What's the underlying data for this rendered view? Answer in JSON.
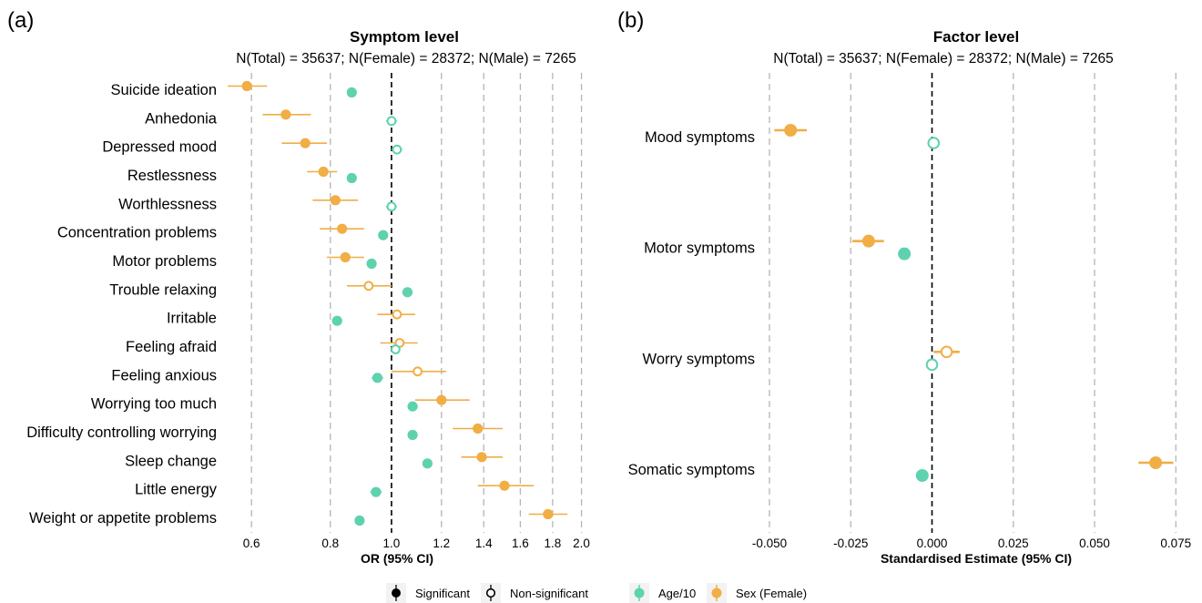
{
  "colors": {
    "age": "#5ED2AE",
    "sex": "#F0AE45",
    "grid": "#B5B5B5",
    "ref": "#000000"
  },
  "legend": {
    "significance": [
      {
        "label": "Significant",
        "filled": true
      },
      {
        "label": "Non-significant",
        "filled": false
      }
    ],
    "predictors": [
      {
        "label": "Age/10",
        "key": "age"
      },
      {
        "label": "Sex (Female)",
        "key": "sex"
      }
    ]
  },
  "chart_data": [
    {
      "panel": "(a)",
      "type": "scatter",
      "subtype": "forest",
      "title": "Symptom level",
      "subtitle": "N(Total) = 35637; N(Female) = 28372; N(Male) = 7265",
      "xlabel": "OR (95% CI)",
      "xscale": "log",
      "reference": 1.0,
      "xlim": [
        0.55,
        2.05
      ],
      "xticks": [
        0.6,
        0.8,
        1.0,
        1.2,
        1.4,
        1.6,
        1.8,
        2.0
      ],
      "xtick_labels": [
        "0.6",
        "0.8",
        "1.0",
        "1.2",
        "1.4",
        "1.6",
        "1.8",
        "2.0"
      ],
      "categories": [
        "Suicide ideation",
        "Anhedonia",
        "Depressed mood",
        "Restlessness",
        "Worthlessness",
        "Concentration problems",
        "Motor problems",
        "Trouble relaxing",
        "Irritable",
        "Feeling afraid",
        "Feeling anxious",
        "Worrying too much",
        "Difficulty controlling worrying",
        "Sleep change",
        "Little energy",
        "Weight or appetite problems"
      ],
      "series": [
        {
          "name": "Sex (Female)",
          "key": "sex",
          "points": [
            {
              "est": 0.59,
              "lo": 0.55,
              "hi": 0.635,
              "sig": true
            },
            {
              "est": 0.68,
              "lo": 0.625,
              "hi": 0.745,
              "sig": true
            },
            {
              "est": 0.73,
              "lo": 0.67,
              "hi": 0.79,
              "sig": true
            },
            {
              "est": 0.78,
              "lo": 0.735,
              "hi": 0.82,
              "sig": true
            },
            {
              "est": 0.815,
              "lo": 0.75,
              "hi": 0.885,
              "sig": true
            },
            {
              "est": 0.835,
              "lo": 0.77,
              "hi": 0.905,
              "sig": true
            },
            {
              "est": 0.845,
              "lo": 0.79,
              "hi": 0.905,
              "sig": true
            },
            {
              "est": 0.92,
              "lo": 0.85,
              "hi": 1.0,
              "sig": false
            },
            {
              "est": 1.02,
              "lo": 0.95,
              "hi": 1.09,
              "sig": false
            },
            {
              "est": 1.03,
              "lo": 0.96,
              "hi": 1.1,
              "sig": false
            },
            {
              "est": 1.1,
              "lo": 1.0,
              "hi": 1.22,
              "sig": false
            },
            {
              "est": 1.2,
              "lo": 1.09,
              "hi": 1.33,
              "sig": true
            },
            {
              "est": 1.37,
              "lo": 1.25,
              "hi": 1.5,
              "sig": true
            },
            {
              "est": 1.39,
              "lo": 1.29,
              "hi": 1.5,
              "sig": true
            },
            {
              "est": 1.51,
              "lo": 1.37,
              "hi": 1.68,
              "sig": true
            },
            {
              "est": 1.77,
              "lo": 1.65,
              "hi": 1.9,
              "sig": true
            }
          ]
        },
        {
          "name": "Age/10",
          "key": "age",
          "points": [
            {
              "est": 0.865,
              "lo": 0.85,
              "hi": 0.88,
              "sig": true
            },
            {
              "est": 1.0,
              "lo": 0.98,
              "hi": 1.02,
              "sig": false
            },
            {
              "est": 1.02,
              "lo": 1.0,
              "hi": 1.04,
              "sig": false
            },
            {
              "est": 0.865,
              "lo": 0.85,
              "hi": 0.88,
              "sig": true
            },
            {
              "est": 1.0,
              "lo": 0.98,
              "hi": 1.02,
              "sig": false
            },
            {
              "est": 0.97,
              "lo": 0.955,
              "hi": 0.985,
              "sig": true
            },
            {
              "est": 0.93,
              "lo": 0.915,
              "hi": 0.945,
              "sig": true
            },
            {
              "est": 1.06,
              "lo": 1.04,
              "hi": 1.08,
              "sig": true
            },
            {
              "est": 0.82,
              "lo": 0.805,
              "hi": 0.835,
              "sig": true
            },
            {
              "est": 1.015,
              "lo": 1.0,
              "hi": 1.03,
              "sig": false
            },
            {
              "est": 0.95,
              "lo": 0.93,
              "hi": 0.97,
              "sig": true
            },
            {
              "est": 1.08,
              "lo": 1.06,
              "hi": 1.1,
              "sig": true
            },
            {
              "est": 1.08,
              "lo": 1.06,
              "hi": 1.1,
              "sig": true
            },
            {
              "est": 1.14,
              "lo": 1.12,
              "hi": 1.16,
              "sig": true
            },
            {
              "est": 0.945,
              "lo": 0.925,
              "hi": 0.965,
              "sig": true
            },
            {
              "est": 0.89,
              "lo": 0.875,
              "hi": 0.905,
              "sig": true
            }
          ]
        }
      ]
    },
    {
      "panel": "(b)",
      "type": "scatter",
      "subtype": "forest",
      "title": "Factor level",
      "subtitle": "N(Total) = 35637; N(Female) = 28372; N(Male) = 7265",
      "xlabel": "Standardised Estimate (95% CI)",
      "reference": 0.0,
      "xlim": [
        -0.057,
        0.078
      ],
      "xticks": [
        -0.05,
        -0.025,
        0.0,
        0.025,
        0.05,
        0.075
      ],
      "xtick_labels": [
        "-0.050",
        "-0.025",
        "0.000",
        "0.025",
        "0.050",
        "0.075"
      ],
      "categories": [
        "Mood symptoms",
        "Motor symptoms",
        "Worry symptoms",
        "Somatic symptoms"
      ],
      "series": [
        {
          "name": "Sex (Female)",
          "key": "sex",
          "points": [
            {
              "est": -0.0435,
              "lo": -0.0485,
              "hi": -0.0385,
              "sig": true
            },
            {
              "est": -0.0195,
              "lo": -0.0245,
              "hi": -0.0148,
              "sig": true
            },
            {
              "est": 0.0045,
              "lo": 0.0005,
              "hi": 0.0085,
              "sig": false
            },
            {
              "est": 0.0688,
              "lo": 0.0635,
              "hi": 0.0742,
              "sig": true
            }
          ]
        },
        {
          "name": "Age/10",
          "key": "age",
          "points": [
            {
              "est": 0.0005,
              "lo": -0.0005,
              "hi": 0.0015,
              "sig": false
            },
            {
              "est": -0.0085,
              "lo": -0.0095,
              "hi": -0.0075,
              "sig": true
            },
            {
              "est": 0.0,
              "lo": -0.001,
              "hi": 0.001,
              "sig": false
            },
            {
              "est": -0.003,
              "lo": -0.004,
              "hi": -0.002,
              "sig": true
            }
          ]
        }
      ]
    }
  ]
}
